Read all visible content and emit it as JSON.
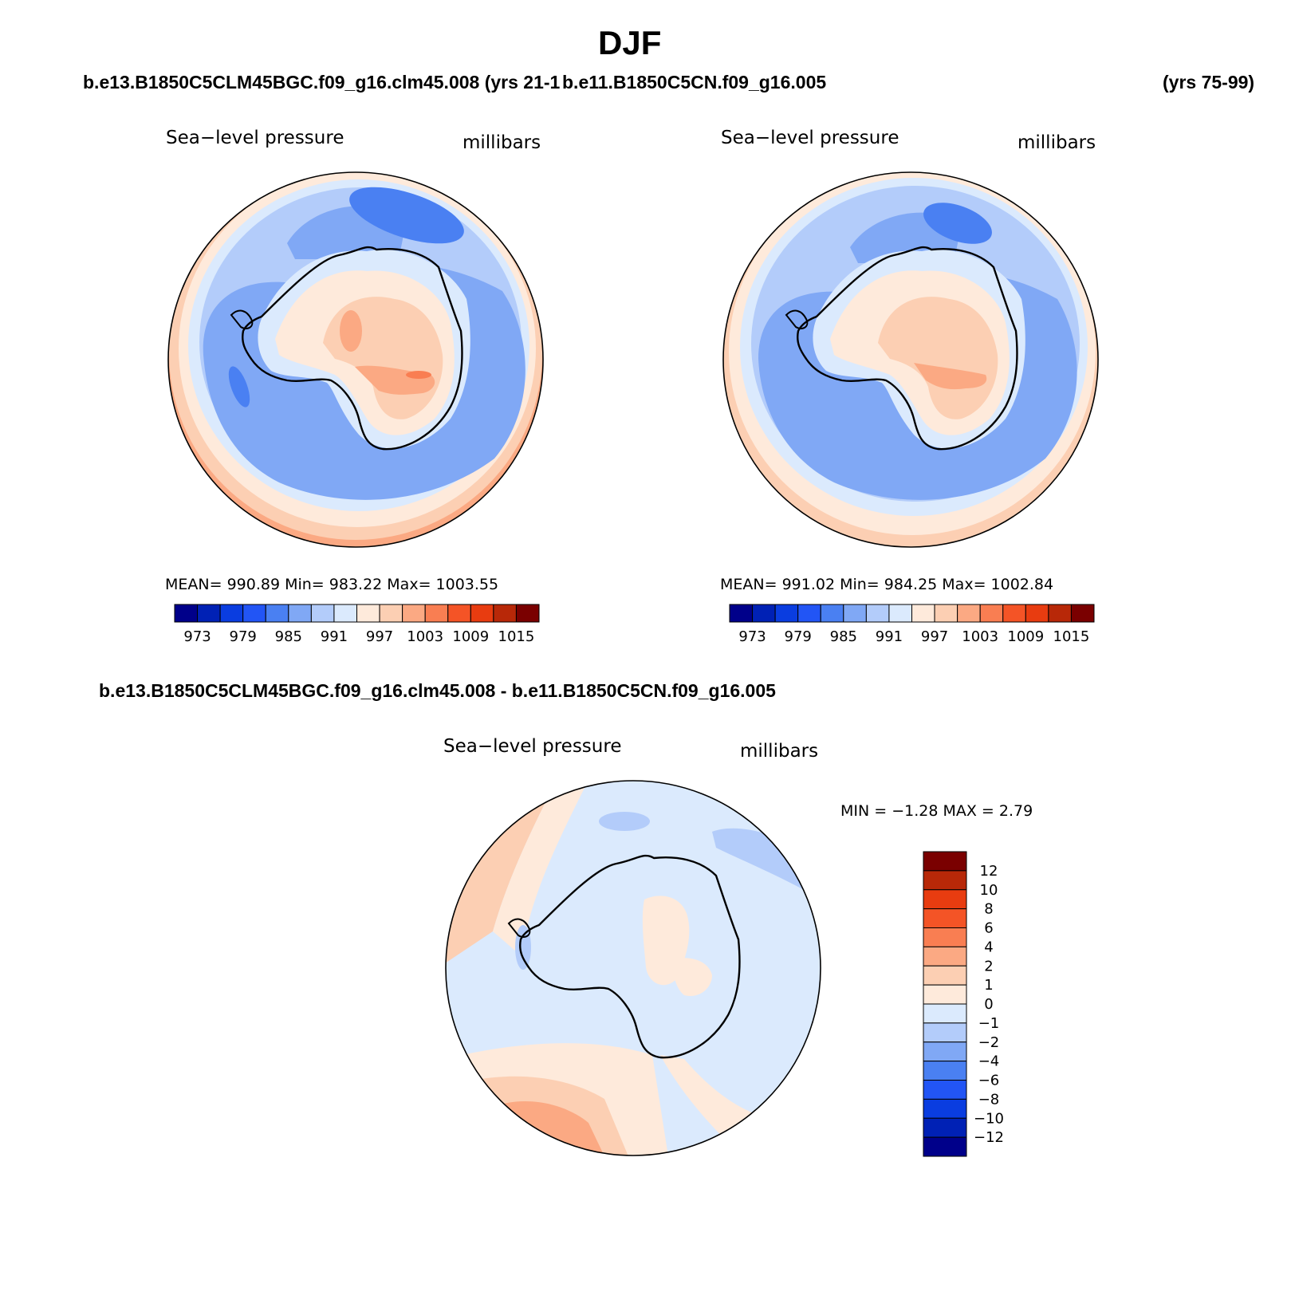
{
  "title": "DJF",
  "headers": {
    "case1": "b.e13.B1850C5CLM45BGC.f09_g16.clm45.008 (yrs 21-1",
    "case2": "b.e11.B1850C5CN.f09_g16.005",
    "case2_years": "(yrs 75-99)",
    "diff": "b.e13.B1850C5CLM45BGC.f09_g16.clm45.008 - b.e11.B1850C5CN.f09_g16.005"
  },
  "chart_data": [
    {
      "type": "heatmap",
      "projection": "south polar stereographic",
      "title": "Sea−level pressure",
      "units": "millibars",
      "stats": {
        "mean": "990.89",
        "min": "983.22",
        "max": "1003.55"
      },
      "stats_text": "MEAN=  990.89    Min=  983.22    Max=  1003.55",
      "levels": [
        973,
        976,
        979,
        982,
        985,
        988,
        991,
        994,
        997,
        1000,
        1003,
        1006,
        1009,
        1012,
        1015
      ],
      "tick_labels": [
        "973",
        "979",
        "985",
        "991",
        "997",
        "1003",
        "1009",
        "1015"
      ]
    },
    {
      "type": "heatmap",
      "projection": "south polar stereographic",
      "title": "Sea−level pressure",
      "units": "millibars",
      "stats": {
        "mean": "991.02",
        "min": "984.25",
        "max": "1002.84"
      },
      "stats_text": "MEAN=  991.02    Min=  984.25    Max=  1002.84",
      "levels": [
        973,
        976,
        979,
        982,
        985,
        988,
        991,
        994,
        997,
        1000,
        1003,
        1006,
        1009,
        1012,
        1015
      ],
      "tick_labels": [
        "973",
        "979",
        "985",
        "991",
        "997",
        "1003",
        "1009",
        "1015"
      ]
    },
    {
      "type": "heatmap",
      "projection": "south polar stereographic",
      "title": "Sea−level pressure",
      "units": "millibars",
      "stats": {
        "min": "−1.28",
        "max": "2.79"
      },
      "stats_text": "MIN =   −1.28  MAX =    2.79",
      "levels": [
        -12,
        -10,
        -8,
        -6,
        -4,
        -2,
        -1,
        0,
        1,
        2,
        4,
        6,
        8,
        10,
        12
      ],
      "tick_labels": [
        "12",
        "10",
        "8",
        "6",
        "4",
        "2",
        "1",
        "0",
        "−1",
        "−2",
        "−4",
        "−6",
        "−8",
        "−10",
        "−12"
      ]
    }
  ],
  "colors": {
    "palette": [
      "#00008a",
      "#0021b5",
      "#0a3de0",
      "#2255f5",
      "#4a80f2",
      "#80a8f5",
      "#b3ccfa",
      "#dbeafd",
      "#feeadb",
      "#fccfb3",
      "#fba983",
      "#f97e52",
      "#f45426",
      "#e83c10",
      "#b82808",
      "#7a0000"
    ]
  }
}
